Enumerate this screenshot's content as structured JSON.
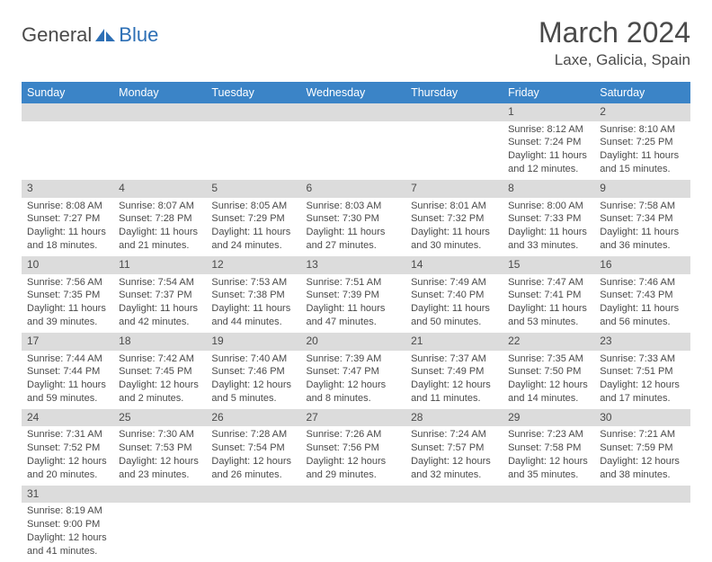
{
  "logo": {
    "text1": "General",
    "text2": "Blue"
  },
  "title": "March 2024",
  "location": "Laxe, Galicia, Spain",
  "colors": {
    "header_bg": "#3b84c7",
    "header_text": "#ffffff",
    "daynum_bg": "#dcdcdc",
    "text": "#4a4a4a",
    "rule": "#3b84c7"
  },
  "dayNames": [
    "Sunday",
    "Monday",
    "Tuesday",
    "Wednesday",
    "Thursday",
    "Friday",
    "Saturday"
  ],
  "weeks": [
    [
      null,
      null,
      null,
      null,
      null,
      {
        "n": "1",
        "sr": "8:12 AM",
        "ss": "7:24 PM",
        "dl": "11 hours and 12 minutes."
      },
      {
        "n": "2",
        "sr": "8:10 AM",
        "ss": "7:25 PM",
        "dl": "11 hours and 15 minutes."
      }
    ],
    [
      {
        "n": "3",
        "sr": "8:08 AM",
        "ss": "7:27 PM",
        "dl": "11 hours and 18 minutes."
      },
      {
        "n": "4",
        "sr": "8:07 AM",
        "ss": "7:28 PM",
        "dl": "11 hours and 21 minutes."
      },
      {
        "n": "5",
        "sr": "8:05 AM",
        "ss": "7:29 PM",
        "dl": "11 hours and 24 minutes."
      },
      {
        "n": "6",
        "sr": "8:03 AM",
        "ss": "7:30 PM",
        "dl": "11 hours and 27 minutes."
      },
      {
        "n": "7",
        "sr": "8:01 AM",
        "ss": "7:32 PM",
        "dl": "11 hours and 30 minutes."
      },
      {
        "n": "8",
        "sr": "8:00 AM",
        "ss": "7:33 PM",
        "dl": "11 hours and 33 minutes."
      },
      {
        "n": "9",
        "sr": "7:58 AM",
        "ss": "7:34 PM",
        "dl": "11 hours and 36 minutes."
      }
    ],
    [
      {
        "n": "10",
        "sr": "7:56 AM",
        "ss": "7:35 PM",
        "dl": "11 hours and 39 minutes."
      },
      {
        "n": "11",
        "sr": "7:54 AM",
        "ss": "7:37 PM",
        "dl": "11 hours and 42 minutes."
      },
      {
        "n": "12",
        "sr": "7:53 AM",
        "ss": "7:38 PM",
        "dl": "11 hours and 44 minutes."
      },
      {
        "n": "13",
        "sr": "7:51 AM",
        "ss": "7:39 PM",
        "dl": "11 hours and 47 minutes."
      },
      {
        "n": "14",
        "sr": "7:49 AM",
        "ss": "7:40 PM",
        "dl": "11 hours and 50 minutes."
      },
      {
        "n": "15",
        "sr": "7:47 AM",
        "ss": "7:41 PM",
        "dl": "11 hours and 53 minutes."
      },
      {
        "n": "16",
        "sr": "7:46 AM",
        "ss": "7:43 PM",
        "dl": "11 hours and 56 minutes."
      }
    ],
    [
      {
        "n": "17",
        "sr": "7:44 AM",
        "ss": "7:44 PM",
        "dl": "11 hours and 59 minutes."
      },
      {
        "n": "18",
        "sr": "7:42 AM",
        "ss": "7:45 PM",
        "dl": "12 hours and 2 minutes."
      },
      {
        "n": "19",
        "sr": "7:40 AM",
        "ss": "7:46 PM",
        "dl": "12 hours and 5 minutes."
      },
      {
        "n": "20",
        "sr": "7:39 AM",
        "ss": "7:47 PM",
        "dl": "12 hours and 8 minutes."
      },
      {
        "n": "21",
        "sr": "7:37 AM",
        "ss": "7:49 PM",
        "dl": "12 hours and 11 minutes."
      },
      {
        "n": "22",
        "sr": "7:35 AM",
        "ss": "7:50 PM",
        "dl": "12 hours and 14 minutes."
      },
      {
        "n": "23",
        "sr": "7:33 AM",
        "ss": "7:51 PM",
        "dl": "12 hours and 17 minutes."
      }
    ],
    [
      {
        "n": "24",
        "sr": "7:31 AM",
        "ss": "7:52 PM",
        "dl": "12 hours and 20 minutes."
      },
      {
        "n": "25",
        "sr": "7:30 AM",
        "ss": "7:53 PM",
        "dl": "12 hours and 23 minutes."
      },
      {
        "n": "26",
        "sr": "7:28 AM",
        "ss": "7:54 PM",
        "dl": "12 hours and 26 minutes."
      },
      {
        "n": "27",
        "sr": "7:26 AM",
        "ss": "7:56 PM",
        "dl": "12 hours and 29 minutes."
      },
      {
        "n": "28",
        "sr": "7:24 AM",
        "ss": "7:57 PM",
        "dl": "12 hours and 32 minutes."
      },
      {
        "n": "29",
        "sr": "7:23 AM",
        "ss": "7:58 PM",
        "dl": "12 hours and 35 minutes."
      },
      {
        "n": "30",
        "sr": "7:21 AM",
        "ss": "7:59 PM",
        "dl": "12 hours and 38 minutes."
      }
    ],
    [
      {
        "n": "31",
        "sr": "8:19 AM",
        "ss": "9:00 PM",
        "dl": "12 hours and 41 minutes."
      },
      null,
      null,
      null,
      null,
      null,
      null
    ]
  ],
  "labels": {
    "sunrise": "Sunrise: ",
    "sunset": "Sunset: ",
    "daylight": "Daylight: "
  }
}
